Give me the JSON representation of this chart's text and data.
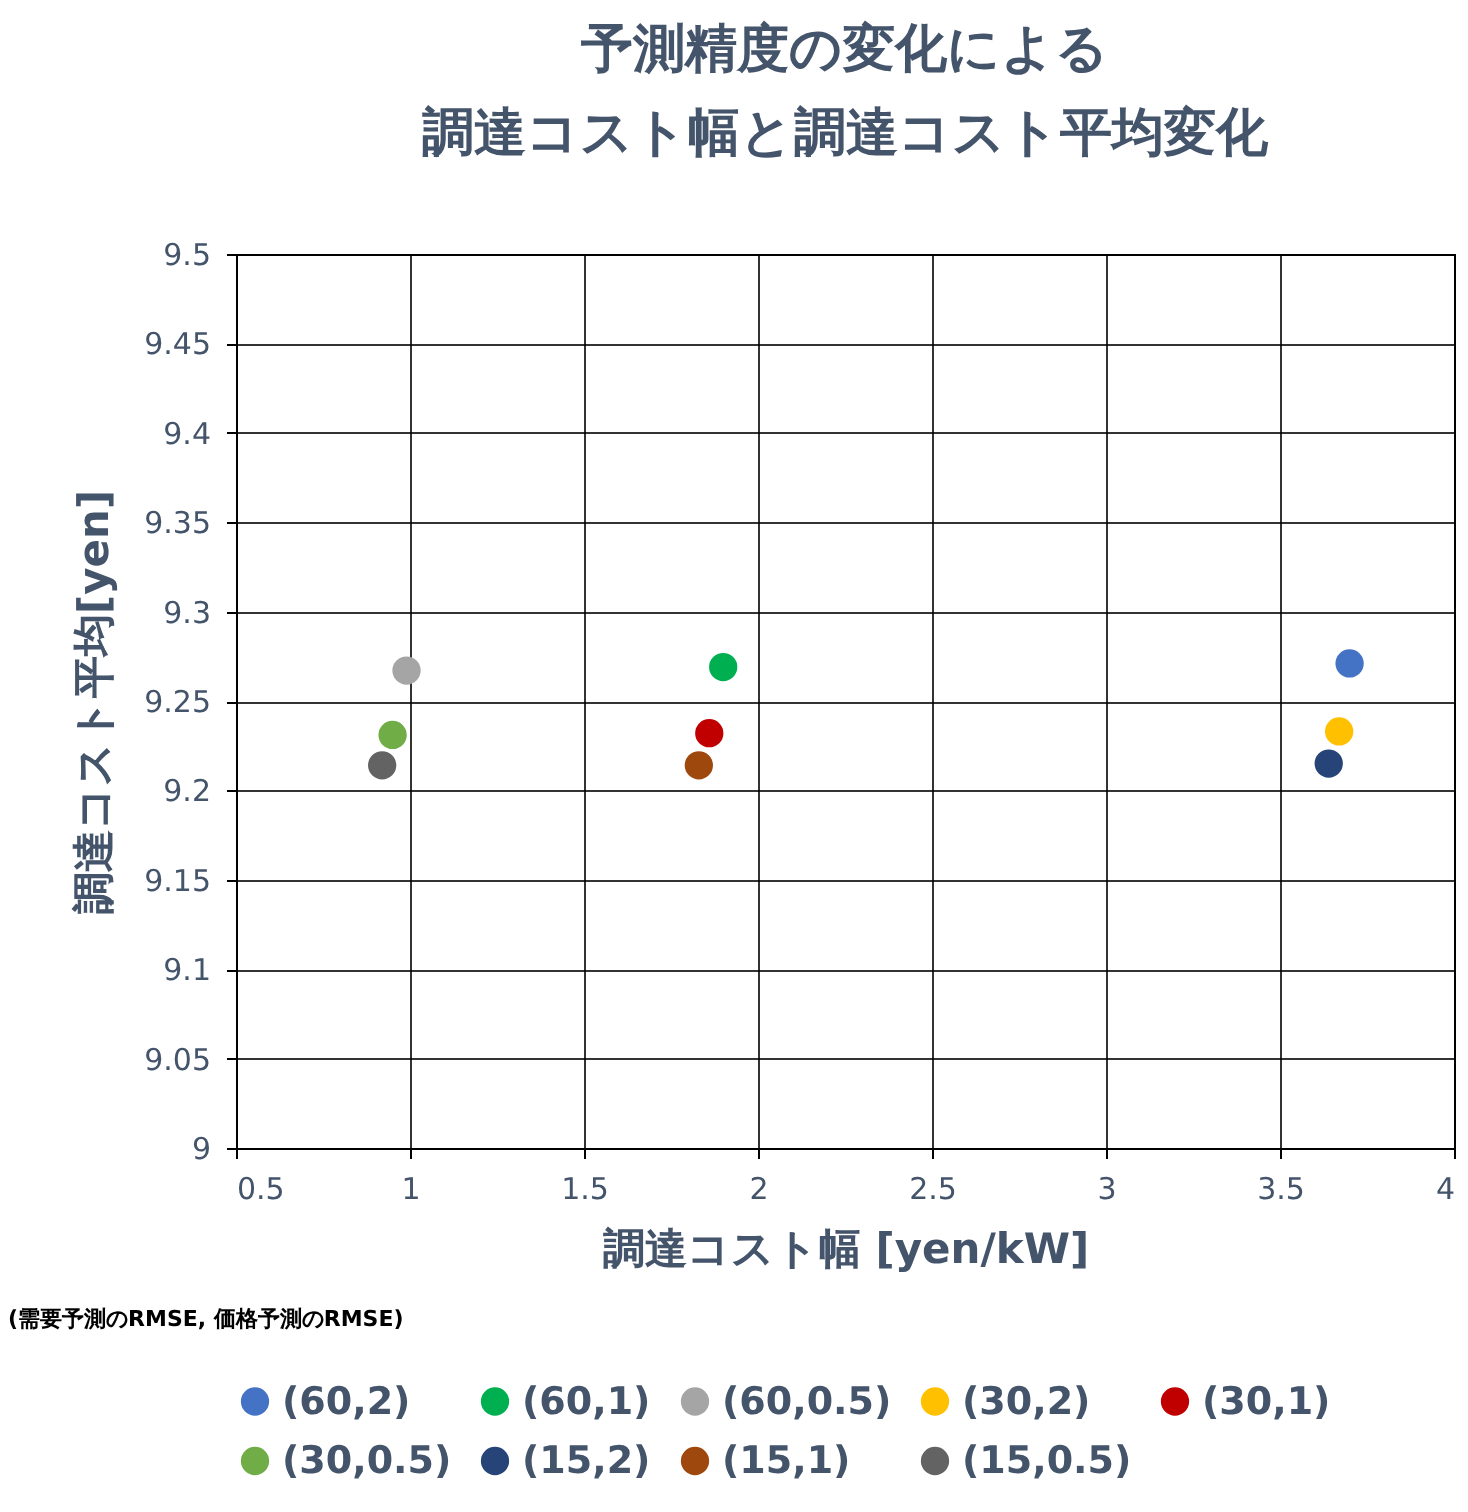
{
  "chart_data": {
    "type": "scatter",
    "title": "予測精度の変化による調達コスト幅と調達コスト平均変化",
    "xlabel": "調達コスト幅 [yen/kW]",
    "ylabel": "調達コスト平均[yen]",
    "annotations": [
      "(需要予測のRMSE, 価格予測のRMSE)"
    ],
    "xlim": [
      0.5,
      4
    ],
    "xticks": [
      0.5,
      1,
      1.5,
      2,
      2.5,
      3,
      3.5,
      4
    ],
    "ylim": [
      9,
      9.5
    ],
    "yticks": [
      9,
      9.05,
      9.1,
      9.15,
      9.2,
      9.25,
      9.3,
      9.35,
      9.4,
      9.45,
      9.5
    ],
    "grid": true,
    "legend": "bottom",
    "marker": "circle",
    "series": [
      {
        "name": "(60,2)",
        "color": "#4472c4",
        "x": [
          3.7
        ],
        "values": [
          9.271
        ]
      },
      {
        "name": "(60,1)",
        "color": "#00b050",
        "x": [
          1.9
        ],
        "values": [
          9.269
        ]
      },
      {
        "name": "(60,0.5)",
        "color": "#a5a5a5",
        "x": [
          0.99
        ],
        "values": [
          9.267
        ]
      },
      {
        "name": "(30,2)",
        "color": "#ffc000",
        "x": [
          3.67
        ],
        "values": [
          9.233
        ]
      },
      {
        "name": "(30,1)",
        "color": "#c00000",
        "x": [
          1.86
        ],
        "values": [
          9.232
        ]
      },
      {
        "name": "(30,0.5)",
        "color": "#70ad47",
        "x": [
          0.95
        ],
        "values": [
          9.231
        ]
      },
      {
        "name": "(15,2)",
        "color": "#264478",
        "x": [
          3.64
        ],
        "values": [
          9.215
        ]
      },
      {
        "name": "(15,1)",
        "color": "#9e480e",
        "x": [
          1.83
        ],
        "values": [
          9.214
        ]
      },
      {
        "name": "(15,0.5)",
        "color": "#636363",
        "x": [
          0.92
        ],
        "values": [
          9.214
        ]
      }
    ]
  }
}
